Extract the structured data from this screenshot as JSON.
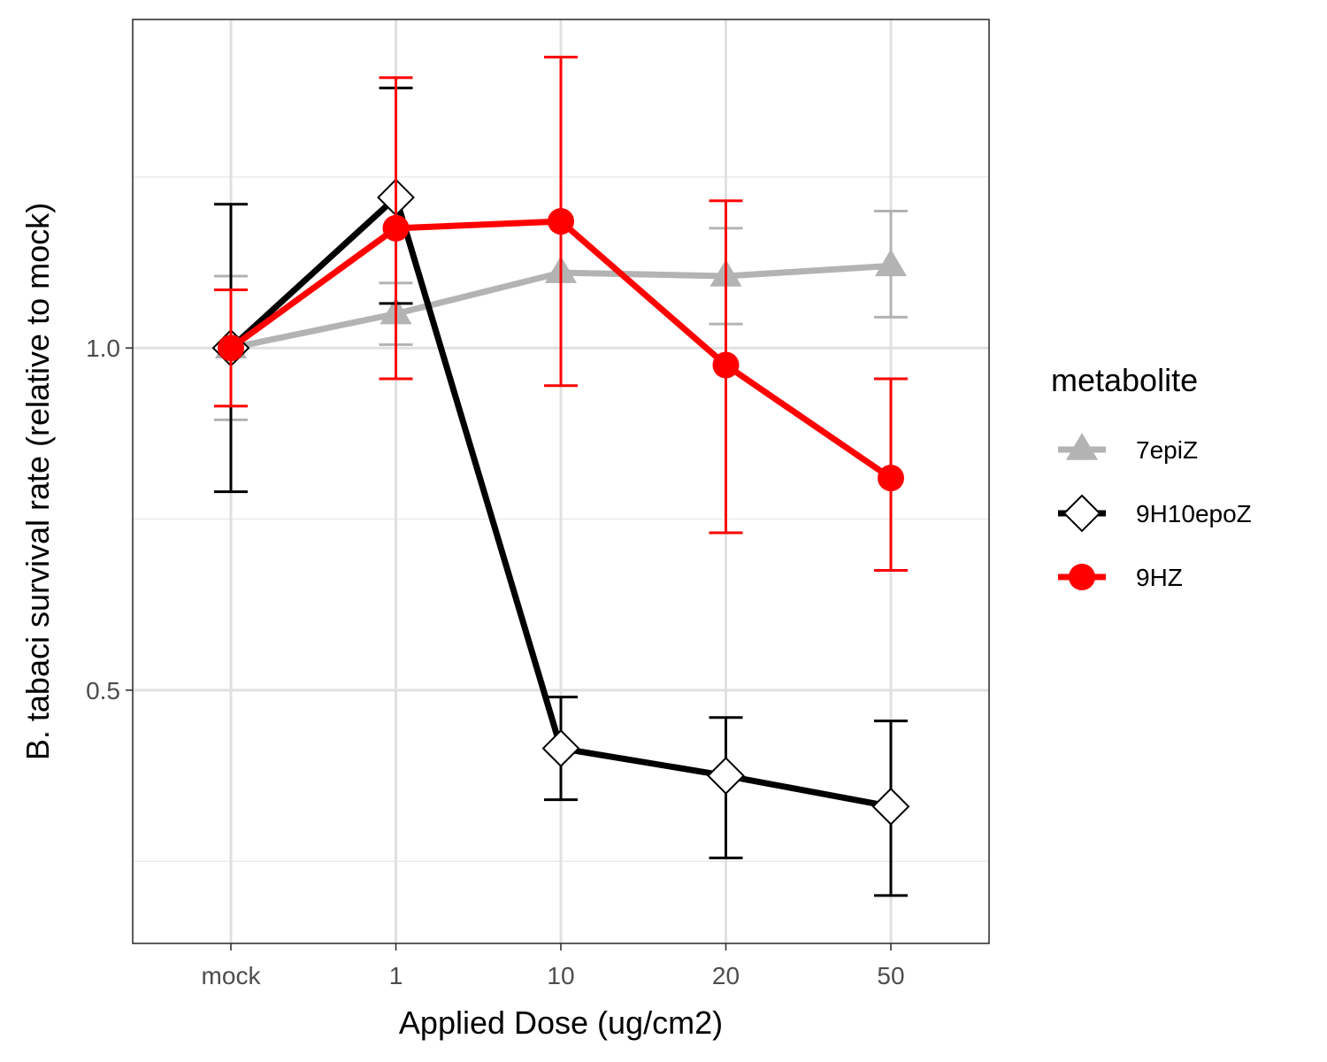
{
  "chart_data": {
    "type": "line",
    "xlabel": "Applied Dose (ug/cm2)",
    "ylabel": "B. tabaci survival rate (relative to mock)",
    "categories": [
      "mock",
      "1",
      "10",
      "20",
      "50"
    ],
    "ylim": [
      0.13,
      1.48
    ],
    "yticks": [
      0.5,
      1.0
    ],
    "ytick_labels": [
      "0.5",
      "1.0"
    ],
    "y_minor_gridlines": [
      0.25,
      0.75,
      1.25
    ],
    "grid": true,
    "legend_title": "metabolite",
    "legend_position": "right",
    "series": [
      {
        "name": "7epiZ",
        "color": "#b3b3b3",
        "marker": "triangle",
        "values": [
          1.0,
          1.05,
          1.11,
          1.105,
          1.12
        ],
        "err_low": [
          0.895,
          1.005,
          1.11,
          1.035,
          1.045
        ],
        "err_high": [
          1.105,
          1.095,
          1.11,
          1.175,
          1.2
        ]
      },
      {
        "name": "9H10epoZ",
        "color": "#000000",
        "marker": "open-diamond",
        "values": [
          1.0,
          1.22,
          0.415,
          0.375,
          0.33
        ],
        "err_low": [
          0.79,
          1.065,
          0.34,
          0.255,
          0.2
        ],
        "err_high": [
          1.21,
          1.38,
          0.49,
          0.46,
          0.455
        ]
      },
      {
        "name": "9HZ",
        "color": "#ff0000",
        "marker": "filled-circle",
        "values": [
          1.0,
          1.175,
          1.185,
          0.975,
          0.81
        ],
        "err_low": [
          0.915,
          0.955,
          0.945,
          0.73,
          0.675
        ],
        "err_high": [
          1.085,
          1.395,
          1.425,
          1.215,
          0.955
        ]
      }
    ]
  }
}
